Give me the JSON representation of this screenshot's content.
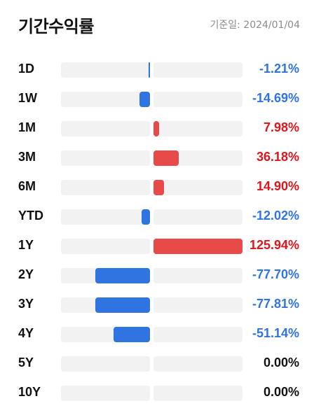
{
  "header": {
    "title": "기간수익률",
    "base_date": "기준일: 2024/01/04"
  },
  "colors": {
    "negative": "#2f74e0",
    "positive": "#e84a4a",
    "neutral": "#111111",
    "track": "#f2f2f2"
  },
  "max_abs_return": 125.94,
  "returns": [
    {
      "period": "1D",
      "value": -1.21,
      "label": "-1.21%"
    },
    {
      "period": "1W",
      "value": -14.69,
      "label": "-14.69%"
    },
    {
      "period": "1M",
      "value": 7.98,
      "label": "7.98%"
    },
    {
      "period": "3M",
      "value": 36.18,
      "label": "36.18%"
    },
    {
      "period": "6M",
      "value": 14.9,
      "label": "14.90%"
    },
    {
      "period": "YTD",
      "value": -12.02,
      "label": "-12.02%"
    },
    {
      "period": "1Y",
      "value": 125.94,
      "label": "125.94%"
    },
    {
      "period": "2Y",
      "value": -77.7,
      "label": "-77.70%"
    },
    {
      "period": "3Y",
      "value": -77.81,
      "label": "-77.81%"
    },
    {
      "period": "4Y",
      "value": -51.14,
      "label": "-51.14%"
    },
    {
      "period": "5Y",
      "value": 0.0,
      "label": "0.00%"
    },
    {
      "period": "10Y",
      "value": 0.0,
      "label": "0.00%"
    }
  ]
}
